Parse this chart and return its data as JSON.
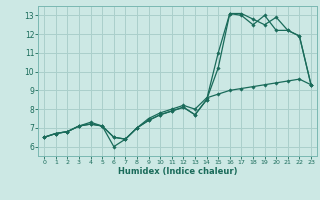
{
  "xlabel": "Humidex (Indice chaleur)",
  "bg_color": "#cce8e4",
  "grid_color": "#aacfcb",
  "line_color": "#1a6b5a",
  "spine_color": "#7ab8b2",
  "xlim": [
    -0.5,
    23.5
  ],
  "ylim": [
    5.5,
    13.5
  ],
  "xticks": [
    0,
    1,
    2,
    3,
    4,
    5,
    6,
    7,
    8,
    9,
    10,
    11,
    12,
    13,
    14,
    15,
    16,
    17,
    18,
    19,
    20,
    21,
    22,
    23
  ],
  "yticks": [
    6,
    7,
    8,
    9,
    10,
    11,
    12,
    13
  ],
  "series1_x": [
    0,
    1,
    2,
    3,
    4,
    5,
    6,
    7,
    8,
    9,
    10,
    11,
    12,
    13,
    14,
    15,
    16,
    17,
    18,
    19,
    20,
    21,
    22,
    23
  ],
  "series1_y": [
    6.5,
    6.7,
    6.8,
    7.1,
    7.2,
    7.1,
    6.0,
    6.4,
    7.0,
    7.4,
    7.7,
    7.9,
    8.1,
    7.7,
    8.5,
    11.0,
    13.1,
    13.1,
    12.8,
    12.5,
    12.9,
    12.2,
    11.9,
    9.3
  ],
  "series2_x": [
    0,
    1,
    2,
    3,
    4,
    5,
    6,
    7,
    8,
    9,
    10,
    11,
    12,
    13,
    14,
    15,
    16,
    17,
    18,
    19,
    20,
    21,
    22,
    23
  ],
  "series2_y": [
    6.5,
    6.7,
    6.8,
    7.1,
    7.2,
    7.1,
    6.5,
    6.4,
    7.0,
    7.4,
    7.7,
    7.9,
    8.1,
    7.7,
    8.5,
    10.2,
    13.1,
    13.0,
    12.5,
    13.0,
    12.2,
    12.2,
    11.9,
    9.3
  ],
  "series3_x": [
    0,
    1,
    2,
    3,
    4,
    5,
    6,
    7,
    8,
    9,
    10,
    11,
    12,
    13,
    14,
    15,
    16,
    17,
    18,
    19,
    20,
    21,
    22,
    23
  ],
  "series3_y": [
    6.5,
    6.7,
    6.8,
    7.1,
    7.3,
    7.1,
    6.5,
    6.4,
    7.0,
    7.5,
    7.8,
    8.0,
    8.2,
    8.0,
    8.6,
    8.8,
    9.0,
    9.1,
    9.2,
    9.3,
    9.4,
    9.5,
    9.6,
    9.3
  ]
}
